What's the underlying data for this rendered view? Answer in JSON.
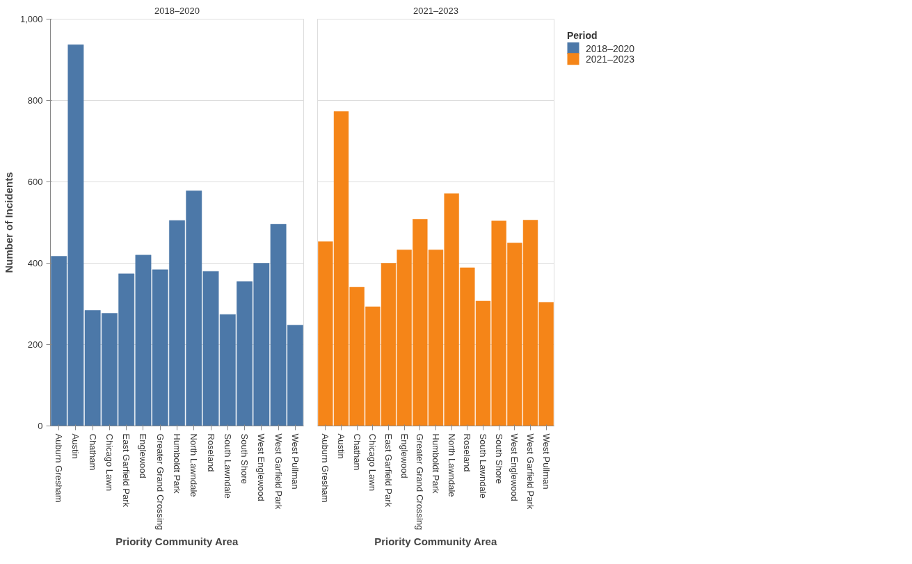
{
  "chart_data": [
    {
      "type": "bar",
      "title": "2018–2020",
      "xlabel": "Priority Community Area",
      "ylabel": "Number of Incidents",
      "categories": [
        "Auburn Gresham",
        "Austin",
        "Chatham",
        "Chicago Lawn",
        "East Garfield Park",
        "Englewood",
        "Greater Grand Crossing",
        "Humboldt Park",
        "North Lawndale",
        "Roseland",
        "South Lawndale",
        "South Shore",
        "West Englewood",
        "West Garfield Park",
        "West Pullman"
      ],
      "series": [
        {
          "name": "2018–2020",
          "color": "#4c78a8",
          "values": [
            417,
            937,
            284,
            277,
            374,
            420,
            384,
            505,
            578,
            380,
            274,
            355,
            400,
            496,
            248
          ]
        }
      ],
      "ylim": [
        0,
        1000
      ],
      "yticks": [
        0,
        200,
        400,
        600,
        800,
        {
          "value": 1000,
          "label": "1,000"
        }
      ],
      "grid": "y",
      "legend": "right",
      "legend_title": "Period"
    },
    {
      "type": "bar",
      "title": "2021–2023",
      "xlabel": "Priority Community Area",
      "categories": [
        "Auburn Gresham",
        "Austin",
        "Chatham",
        "Chicago Lawn",
        "East Garfield Park",
        "Englewood",
        "Greater Grand Crossing",
        "Humboldt Park",
        "North Lawndale",
        "Roseland",
        "South Lawndale",
        "South Shore",
        "West Englewood",
        "West Garfield Park",
        "West Pullman"
      ],
      "series": [
        {
          "name": "2021–2023",
          "color": "#f58518",
          "values": [
            453,
            773,
            341,
            293,
            400,
            433,
            508,
            433,
            571,
            389,
            307,
            504,
            450,
            506,
            304
          ]
        }
      ],
      "ylim": [
        0,
        1000
      ],
      "yticks": [
        0,
        200,
        400,
        600,
        800,
        1000
      ],
      "grid": "y",
      "tick_labels": "x",
      "legend": "right"
    }
  ]
}
